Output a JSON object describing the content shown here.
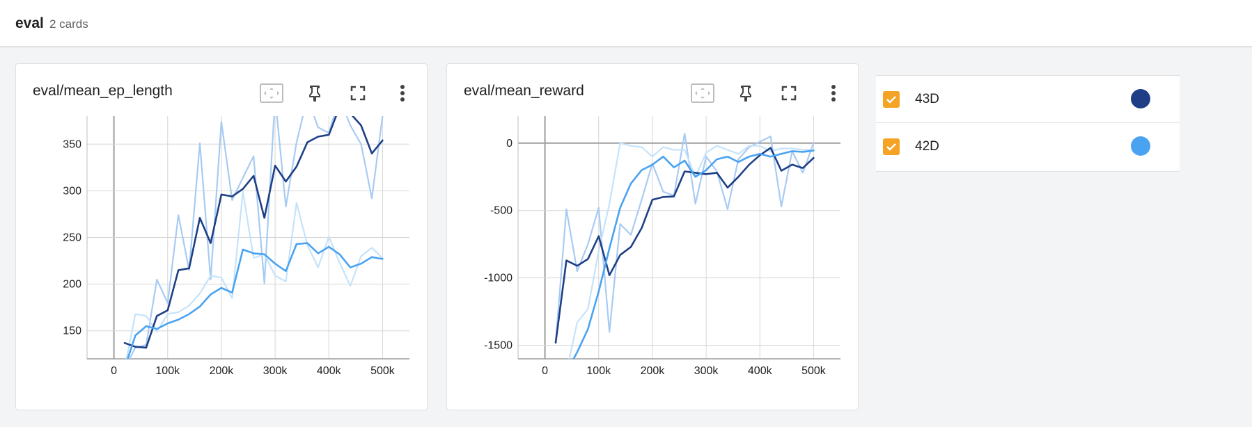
{
  "header": {
    "group_name": "eval",
    "card_count": "2 cards"
  },
  "runs": [
    {
      "name": "43D",
      "color": "#1e3f86",
      "checked": true
    },
    {
      "name": "42D",
      "color": "#4aa3f0",
      "checked": true
    }
  ],
  "cards": [
    {
      "title": "eval/mean_ep_length"
    },
    {
      "title": "eval/mean_reward"
    }
  ],
  "chart_data": [
    {
      "type": "line",
      "title": "eval/mean_ep_length",
      "xlabel": "",
      "ylabel": "",
      "xlim": [
        -50000,
        550000
      ],
      "ylim": [
        120,
        380
      ],
      "x_ticks": [
        0,
        100000,
        200000,
        300000,
        400000,
        500000
      ],
      "x_tick_labels": [
        "0",
        "100k",
        "200k",
        "300k",
        "400k",
        "500k"
      ],
      "y_ticks": [
        150,
        200,
        250,
        300,
        350
      ],
      "y_tick_labels": [
        "150",
        "200",
        "250",
        "300",
        "350"
      ],
      "grid": true,
      "series": [
        {
          "name": "43D",
          "smoothed": true,
          "x": [
            20000,
            40000,
            60000,
            80000,
            100000,
            120000,
            140000,
            160000,
            180000,
            200000,
            220000,
            240000,
            260000,
            280000,
            300000,
            320000,
            340000,
            360000,
            380000,
            400000,
            420000,
            440000,
            460000,
            480000,
            500000
          ],
          "values": [
            137,
            133,
            132,
            166,
            172,
            215,
            217,
            271,
            244,
            296,
            294,
            302,
            316,
            271,
            327,
            310,
            326,
            352,
            358,
            360,
            390,
            383,
            370,
            340,
            354
          ]
        },
        {
          "name": "43D",
          "smoothed": false,
          "x": [
            20000,
            40000,
            60000,
            80000,
            100000,
            120000,
            140000,
            160000,
            180000,
            200000,
            220000,
            240000,
            260000,
            280000,
            300000,
            320000,
            340000,
            360000,
            380000,
            400000,
            420000,
            440000,
            460000,
            480000,
            500000
          ],
          "values": [
            110,
            132,
            135,
            205,
            180,
            274,
            215,
            351,
            205,
            374,
            290,
            314,
            337,
            201,
            400,
            283,
            352,
            400,
            368,
            362,
            400,
            370,
            350,
            292,
            380
          ]
        },
        {
          "name": "42D",
          "smoothed": true,
          "x": [
            20000,
            40000,
            60000,
            80000,
            100000,
            120000,
            140000,
            160000,
            180000,
            200000,
            220000,
            240000,
            260000,
            280000,
            300000,
            320000,
            340000,
            360000,
            380000,
            400000,
            420000,
            440000,
            460000,
            480000,
            500000
          ],
          "values": [
            110,
            145,
            155,
            152,
            158,
            162,
            168,
            176,
            189,
            196,
            191,
            237,
            233,
            232,
            222,
            214,
            243,
            244,
            233,
            240,
            232,
            218,
            222,
            229,
            227
          ]
        },
        {
          "name": "42D",
          "smoothed": false,
          "x": [
            20000,
            40000,
            60000,
            80000,
            100000,
            120000,
            140000,
            160000,
            180000,
            200000,
            220000,
            240000,
            260000,
            280000,
            300000,
            320000,
            340000,
            360000,
            380000,
            400000,
            420000,
            440000,
            460000,
            480000,
            500000
          ],
          "values": [
            110,
            168,
            166,
            149,
            168,
            170,
            177,
            190,
            209,
            207,
            185,
            299,
            228,
            232,
            209,
            203,
            287,
            242,
            218,
            251,
            223,
            198,
            230,
            239,
            228
          ]
        }
      ]
    },
    {
      "type": "line",
      "title": "eval/mean_reward",
      "xlabel": "",
      "ylabel": "",
      "xlim": [
        -50000,
        550000
      ],
      "ylim": [
        -1600,
        200
      ],
      "x_ticks": [
        0,
        100000,
        200000,
        300000,
        400000,
        500000
      ],
      "x_tick_labels": [
        "0",
        "100k",
        "200k",
        "300k",
        "400k",
        "500k"
      ],
      "y_ticks": [
        -1500,
        -1000,
        -500,
        0
      ],
      "y_tick_labels": [
        "-1500",
        "-1000",
        "-500",
        "0"
      ],
      "grid": true,
      "series": [
        {
          "name": "43D",
          "smoothed": true,
          "x": [
            20000,
            40000,
            60000,
            80000,
            100000,
            120000,
            140000,
            160000,
            180000,
            200000,
            220000,
            240000,
            260000,
            280000,
            300000,
            320000,
            340000,
            360000,
            380000,
            400000,
            420000,
            440000,
            460000,
            480000,
            500000
          ],
          "values": [
            -1480,
            -870,
            -910,
            -860,
            -690,
            -980,
            -830,
            -770,
            -630,
            -420,
            -400,
            -395,
            -210,
            -220,
            -230,
            -220,
            -330,
            -250,
            -160,
            -90,
            -35,
            -205,
            -160,
            -185,
            -110
          ]
        },
        {
          "name": "43D",
          "smoothed": false,
          "x": [
            20000,
            40000,
            60000,
            80000,
            100000,
            120000,
            140000,
            160000,
            180000,
            200000,
            220000,
            240000,
            260000,
            280000,
            300000,
            320000,
            340000,
            360000,
            380000,
            400000,
            420000,
            440000,
            460000,
            480000,
            500000
          ],
          "values": [
            -1480,
            -490,
            -950,
            -750,
            -480,
            -1400,
            -600,
            -680,
            -420,
            -150,
            -360,
            -390,
            70,
            -450,
            -100,
            -210,
            -490,
            -120,
            -30,
            10,
            50,
            -470,
            -60,
            -220,
            0
          ]
        },
        {
          "name": "42D",
          "smoothed": true,
          "x": [
            20000,
            40000,
            60000,
            80000,
            100000,
            120000,
            140000,
            160000,
            180000,
            200000,
            220000,
            240000,
            260000,
            280000,
            300000,
            320000,
            340000,
            360000,
            380000,
            400000,
            420000,
            440000,
            460000,
            480000,
            500000
          ],
          "values": [
            -1700,
            -1700,
            -1550,
            -1380,
            -1100,
            -780,
            -480,
            -300,
            -200,
            -160,
            -100,
            -180,
            -130,
            -250,
            -200,
            -120,
            -100,
            -140,
            -100,
            -80,
            -100,
            -80,
            -60,
            -65,
            -55
          ]
        },
        {
          "name": "42D",
          "smoothed": false,
          "x": [
            20000,
            40000,
            60000,
            80000,
            100000,
            120000,
            140000,
            160000,
            180000,
            200000,
            220000,
            240000,
            260000,
            280000,
            300000,
            320000,
            340000,
            360000,
            380000,
            400000,
            420000,
            440000,
            460000,
            480000,
            500000
          ],
          "values": [
            -1700,
            -1700,
            -1330,
            -1230,
            -800,
            -450,
            0,
            -20,
            -30,
            -100,
            -30,
            -50,
            -50,
            -250,
            -70,
            -20,
            -50,
            -80,
            -20,
            -20,
            -60,
            -40,
            -40,
            -50,
            -50
          ]
        }
      ]
    }
  ]
}
